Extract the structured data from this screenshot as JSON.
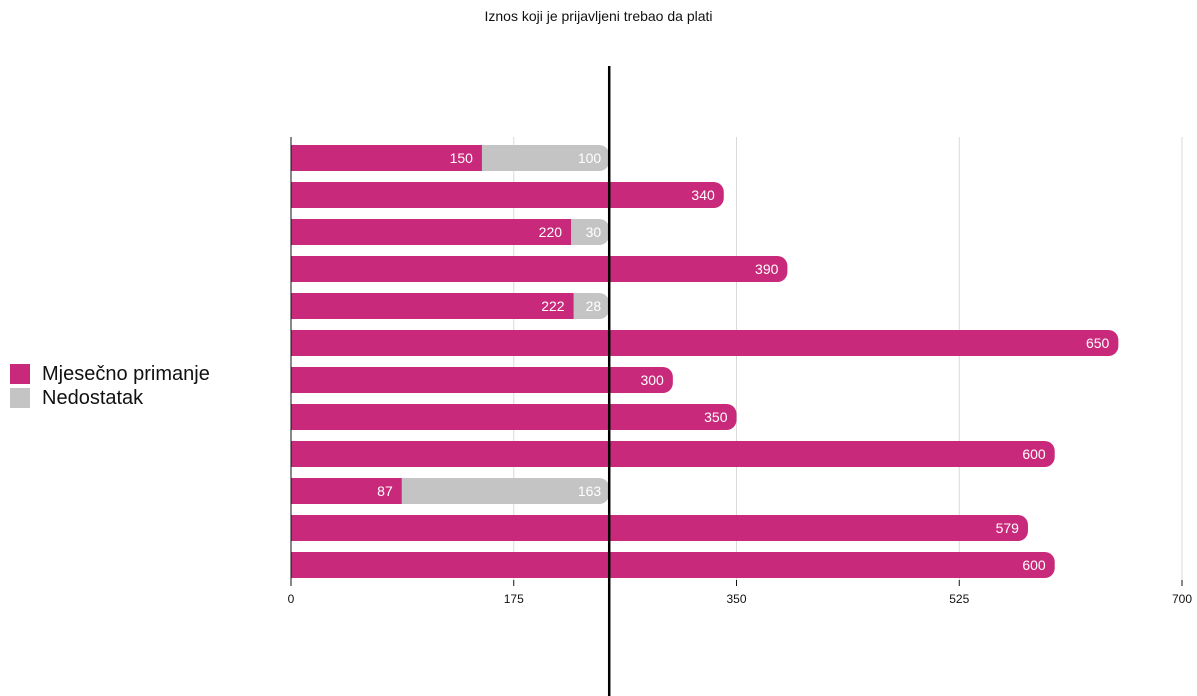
{
  "chart_data": {
    "type": "bar",
    "orientation": "horizontal",
    "stacked": true,
    "title": "Iznos koji je prijavljeni trebao da plati",
    "xlabel": "",
    "ylabel": "",
    "xlim": [
      0,
      700
    ],
    "x_ticks": [
      0,
      175,
      350,
      525,
      700
    ],
    "grid": true,
    "legend_position": "left",
    "reference_line": 250,
    "series": [
      {
        "name": "Mjesečno primanje",
        "color": "#c8297a",
        "values": [
          150,
          340,
          220,
          390,
          222,
          650,
          300,
          350,
          600,
          87,
          579,
          600
        ]
      },
      {
        "name": "Nedostatak",
        "color": "#c4c4c4",
        "values": [
          100,
          null,
          30,
          null,
          28,
          null,
          null,
          null,
          null,
          163,
          null,
          null
        ]
      }
    ]
  }
}
